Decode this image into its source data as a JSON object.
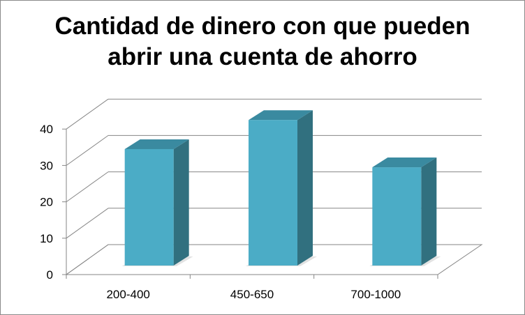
{
  "chart_data": {
    "type": "bar",
    "title": "Cantidad de dinero con que pueden\nabrir una cuenta de ahorro",
    "xlabel": "",
    "ylabel": "",
    "categories": [
      "200-400",
      "450-650",
      "700-1000"
    ],
    "values": [
      32,
      40,
      27
    ],
    "ylim": [
      0,
      40
    ],
    "yticks": [
      "0",
      "10",
      "20",
      "30",
      "40"
    ],
    "grid": true,
    "legend": "none",
    "style": "3d-column",
    "colors": {
      "front": "#4bacc6",
      "side": "#31707f",
      "top": "#3a8aa0",
      "grid": "#868686",
      "axis": "#868686"
    }
  }
}
